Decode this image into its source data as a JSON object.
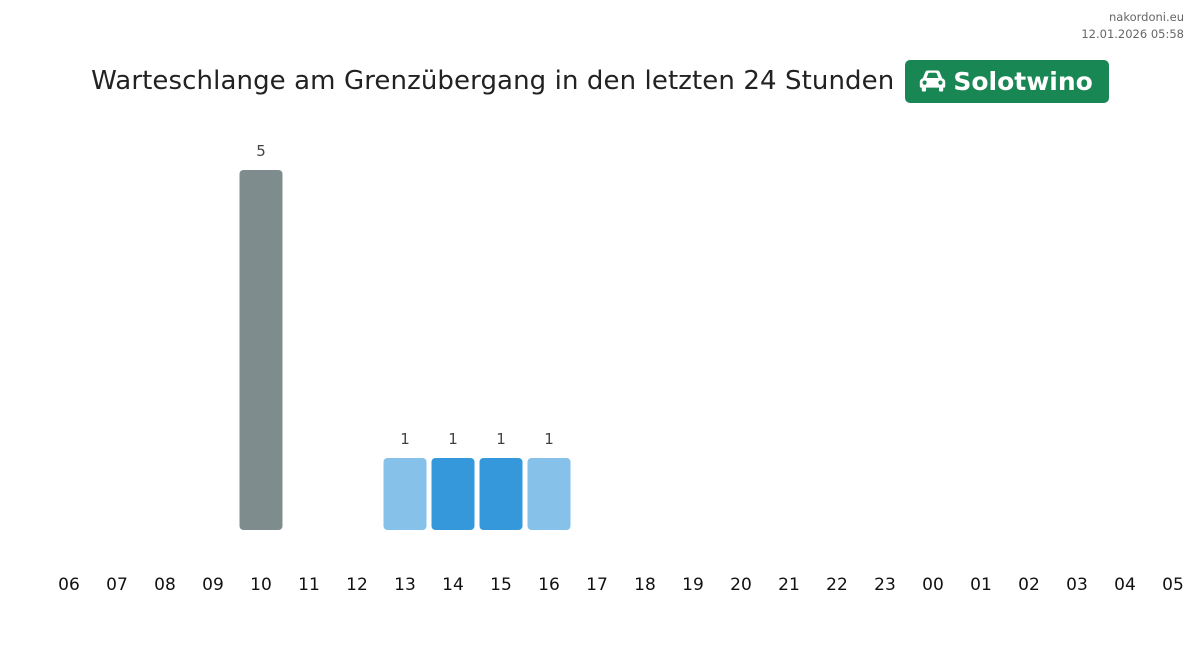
{
  "meta": {
    "site": "nakordoni.eu",
    "timestamp": "12.01.2026 05:58"
  },
  "header": {
    "title": "Warteschlange am Grenzübergang in den letzten 24 Stunden",
    "crossing_name": "Solotwino",
    "crossing_icon": "car-icon",
    "badge_color": "#198754"
  },
  "chart_data": {
    "type": "bar",
    "categories": [
      "06",
      "07",
      "08",
      "09",
      "10",
      "11",
      "12",
      "13",
      "14",
      "15",
      "16",
      "17",
      "18",
      "19",
      "20",
      "21",
      "22",
      "23",
      "00",
      "01",
      "02",
      "03",
      "04",
      "05"
    ],
    "values": [
      null,
      null,
      null,
      null,
      5,
      null,
      null,
      1,
      1,
      1,
      1,
      null,
      null,
      null,
      null,
      null,
      null,
      null,
      null,
      null,
      null,
      null,
      null,
      null
    ],
    "bar_colors": [
      null,
      null,
      null,
      null,
      "#7f8c8d",
      null,
      null,
      "#85c1e9",
      "#3498db",
      "#3498db",
      "#85c1e9",
      null,
      null,
      null,
      null,
      null,
      null,
      null,
      null,
      null,
      null,
      null,
      null,
      null
    ],
    "ylim": [
      0,
      5
    ],
    "grid": false,
    "legend": "none"
  }
}
